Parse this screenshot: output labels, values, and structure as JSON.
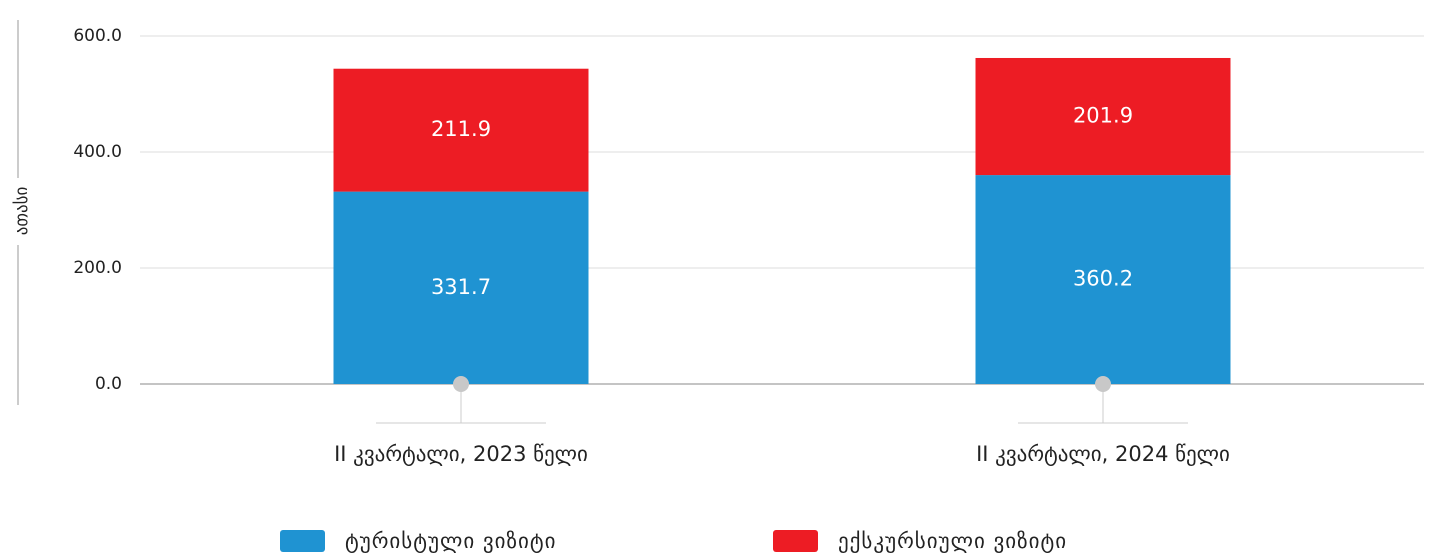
{
  "chart_data": {
    "type": "stacked_bar",
    "y_label": "ათასი",
    "categories": [
      "II კვარტალი, 2023 წელი",
      "II კვარტალი, 2024 წელი"
    ],
    "series": [
      {
        "name": "ტურისტული ვიზიტი",
        "color": "#1f93d2",
        "values": [
          331.7,
          360.2
        ]
      },
      {
        "name": "ექსკურსიული ვიზიტი",
        "color": "#ed1c24",
        "values": [
          211.9,
          201.9
        ]
      }
    ],
    "ylim": [
      0,
      600
    ],
    "yticks": [
      {
        "value": 0,
        "label": "0.0"
      },
      {
        "value": 200,
        "label": "200.0"
      },
      {
        "value": 400,
        "label": "400.0"
      },
      {
        "value": 600,
        "label": "600.0"
      }
    ],
    "grid": true
  }
}
